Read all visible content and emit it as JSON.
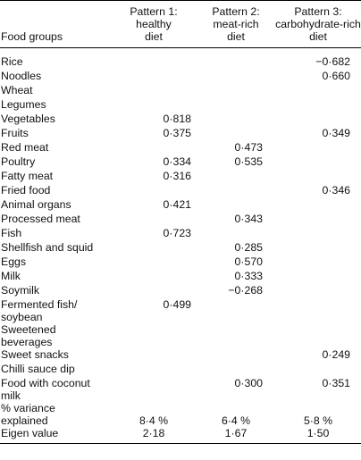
{
  "headers": {
    "food_groups": "Food groups",
    "p1": [
      "Pattern 1:",
      "healthy",
      "diet"
    ],
    "p2": [
      "Pattern 2:",
      "meat-rich",
      "diet"
    ],
    "p3": [
      "Pattern 3:",
      "carbohydrate-rich",
      "diet"
    ]
  },
  "rows": [
    {
      "food": [
        "Rice"
      ],
      "p1": "",
      "p2": "",
      "p3": "−0·682"
    },
    {
      "food": [
        "Noodles"
      ],
      "p1": "",
      "p2": "",
      "p3": "0·660"
    },
    {
      "food": [
        "Wheat"
      ],
      "p1": "",
      "p2": "",
      "p3": ""
    },
    {
      "food": [
        "Legumes"
      ],
      "p1": "",
      "p2": "",
      "p3": ""
    },
    {
      "food": [
        "Vegetables"
      ],
      "p1": "0·818",
      "p2": "",
      "p3": ""
    },
    {
      "food": [
        "Fruits"
      ],
      "p1": "0·375",
      "p2": "",
      "p3": "0·349"
    },
    {
      "food": [
        "Red meat"
      ],
      "p1": "",
      "p2": "0·473",
      "p3": ""
    },
    {
      "food": [
        "Poultry"
      ],
      "p1": "0·334",
      "p2": "0·535",
      "p3": ""
    },
    {
      "food": [
        "Fatty meat"
      ],
      "p1": "0·316",
      "p2": "",
      "p3": ""
    },
    {
      "food": [
        "Fried food"
      ],
      "p1": "",
      "p2": "",
      "p3": "0·346"
    },
    {
      "food": [
        "Animal organs"
      ],
      "p1": "0·421",
      "p2": "",
      "p3": ""
    },
    {
      "food": [
        "Processed meat"
      ],
      "p1": "",
      "p2": "0·343",
      "p3": ""
    },
    {
      "food": [
        "Fish"
      ],
      "p1": "0·723",
      "p2": "",
      "p3": ""
    },
    {
      "food": [
        "Shellfish and squid"
      ],
      "p1": "",
      "p2": "0·285",
      "p3": ""
    },
    {
      "food": [
        "Eggs"
      ],
      "p1": "",
      "p2": "0·570",
      "p3": ""
    },
    {
      "food": [
        "Milk"
      ],
      "p1": "",
      "p2": "0·333",
      "p3": ""
    },
    {
      "food": [
        "Soymilk"
      ],
      "p1": "",
      "p2": "−0·268",
      "p3": ""
    },
    {
      "food": [
        "Fermented fish/",
        "soybean"
      ],
      "p1": "0·499",
      "p2": "",
      "p3": ""
    },
    {
      "food": [
        "Sweetened",
        "beverages"
      ],
      "p1": "",
      "p2": "",
      "p3": ""
    },
    {
      "food": [
        "Sweet snacks"
      ],
      "p1": "",
      "p2": "",
      "p3": "0·249"
    },
    {
      "food": [
        "Chilli sauce dip"
      ],
      "p1": "",
      "p2": "",
      "p3": ""
    },
    {
      "food": [
        "Food with coconut",
        "milk"
      ],
      "p1": "",
      "p2": "0·300",
      "p3": "0·351"
    }
  ],
  "summary": [
    {
      "food": [
        "% variance",
        "explained"
      ],
      "p1": "8·4 %",
      "p2": "6·4 %",
      "p3": "5·8 %"
    },
    {
      "food": [
        "Eigen value"
      ],
      "p1": "2·18",
      "p2": "1·67",
      "p3": "1·50"
    }
  ]
}
